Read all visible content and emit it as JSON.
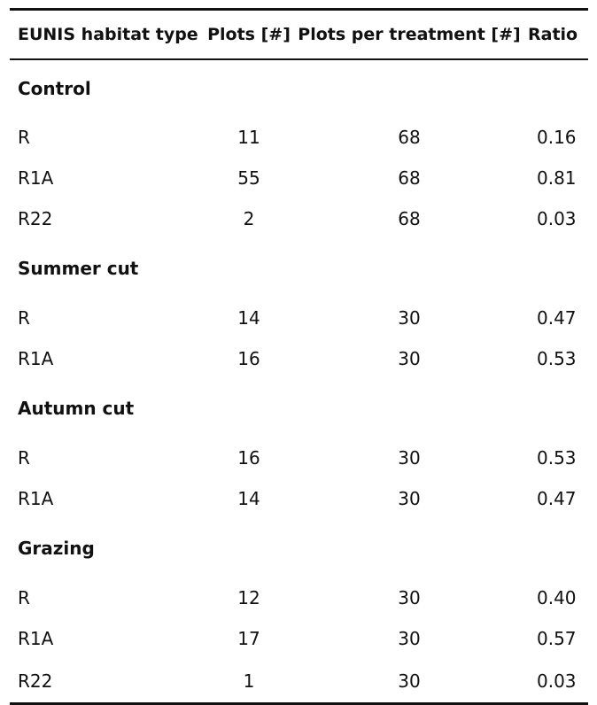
{
  "table": {
    "headers": {
      "habitat": "EUNIS habitat type",
      "plots": "Plots [#]",
      "plots_per_treatment": "Plots per treatment [#]",
      "ratio": "Ratio"
    },
    "groups": [
      {
        "name": "Control",
        "rows": [
          {
            "habitat": "R",
            "plots": "11",
            "plots_per_treatment": "68",
            "ratio": "0.16"
          },
          {
            "habitat": "R1A",
            "plots": "55",
            "plots_per_treatment": "68",
            "ratio": "0.81"
          },
          {
            "habitat": "R22",
            "plots": "2",
            "plots_per_treatment": "68",
            "ratio": "0.03"
          }
        ]
      },
      {
        "name": "Summer cut",
        "rows": [
          {
            "habitat": "R",
            "plots": "14",
            "plots_per_treatment": "30",
            "ratio": "0.47"
          },
          {
            "habitat": "R1A",
            "plots": "16",
            "plots_per_treatment": "30",
            "ratio": "0.53"
          }
        ]
      },
      {
        "name": "Autumn cut",
        "rows": [
          {
            "habitat": "R",
            "plots": "16",
            "plots_per_treatment": "30",
            "ratio": "0.53"
          },
          {
            "habitat": "R1A",
            "plots": "14",
            "plots_per_treatment": "30",
            "ratio": "0.47"
          }
        ]
      },
      {
        "name": "Grazing",
        "rows": [
          {
            "habitat": "R",
            "plots": "12",
            "plots_per_treatment": "30",
            "ratio": "0.40"
          },
          {
            "habitat": "R1A",
            "plots": "17",
            "plots_per_treatment": "30",
            "ratio": "0.57"
          },
          {
            "habitat": "R22",
            "plots": "1",
            "plots_per_treatment": "30",
            "ratio": "0.03"
          }
        ]
      }
    ]
  }
}
